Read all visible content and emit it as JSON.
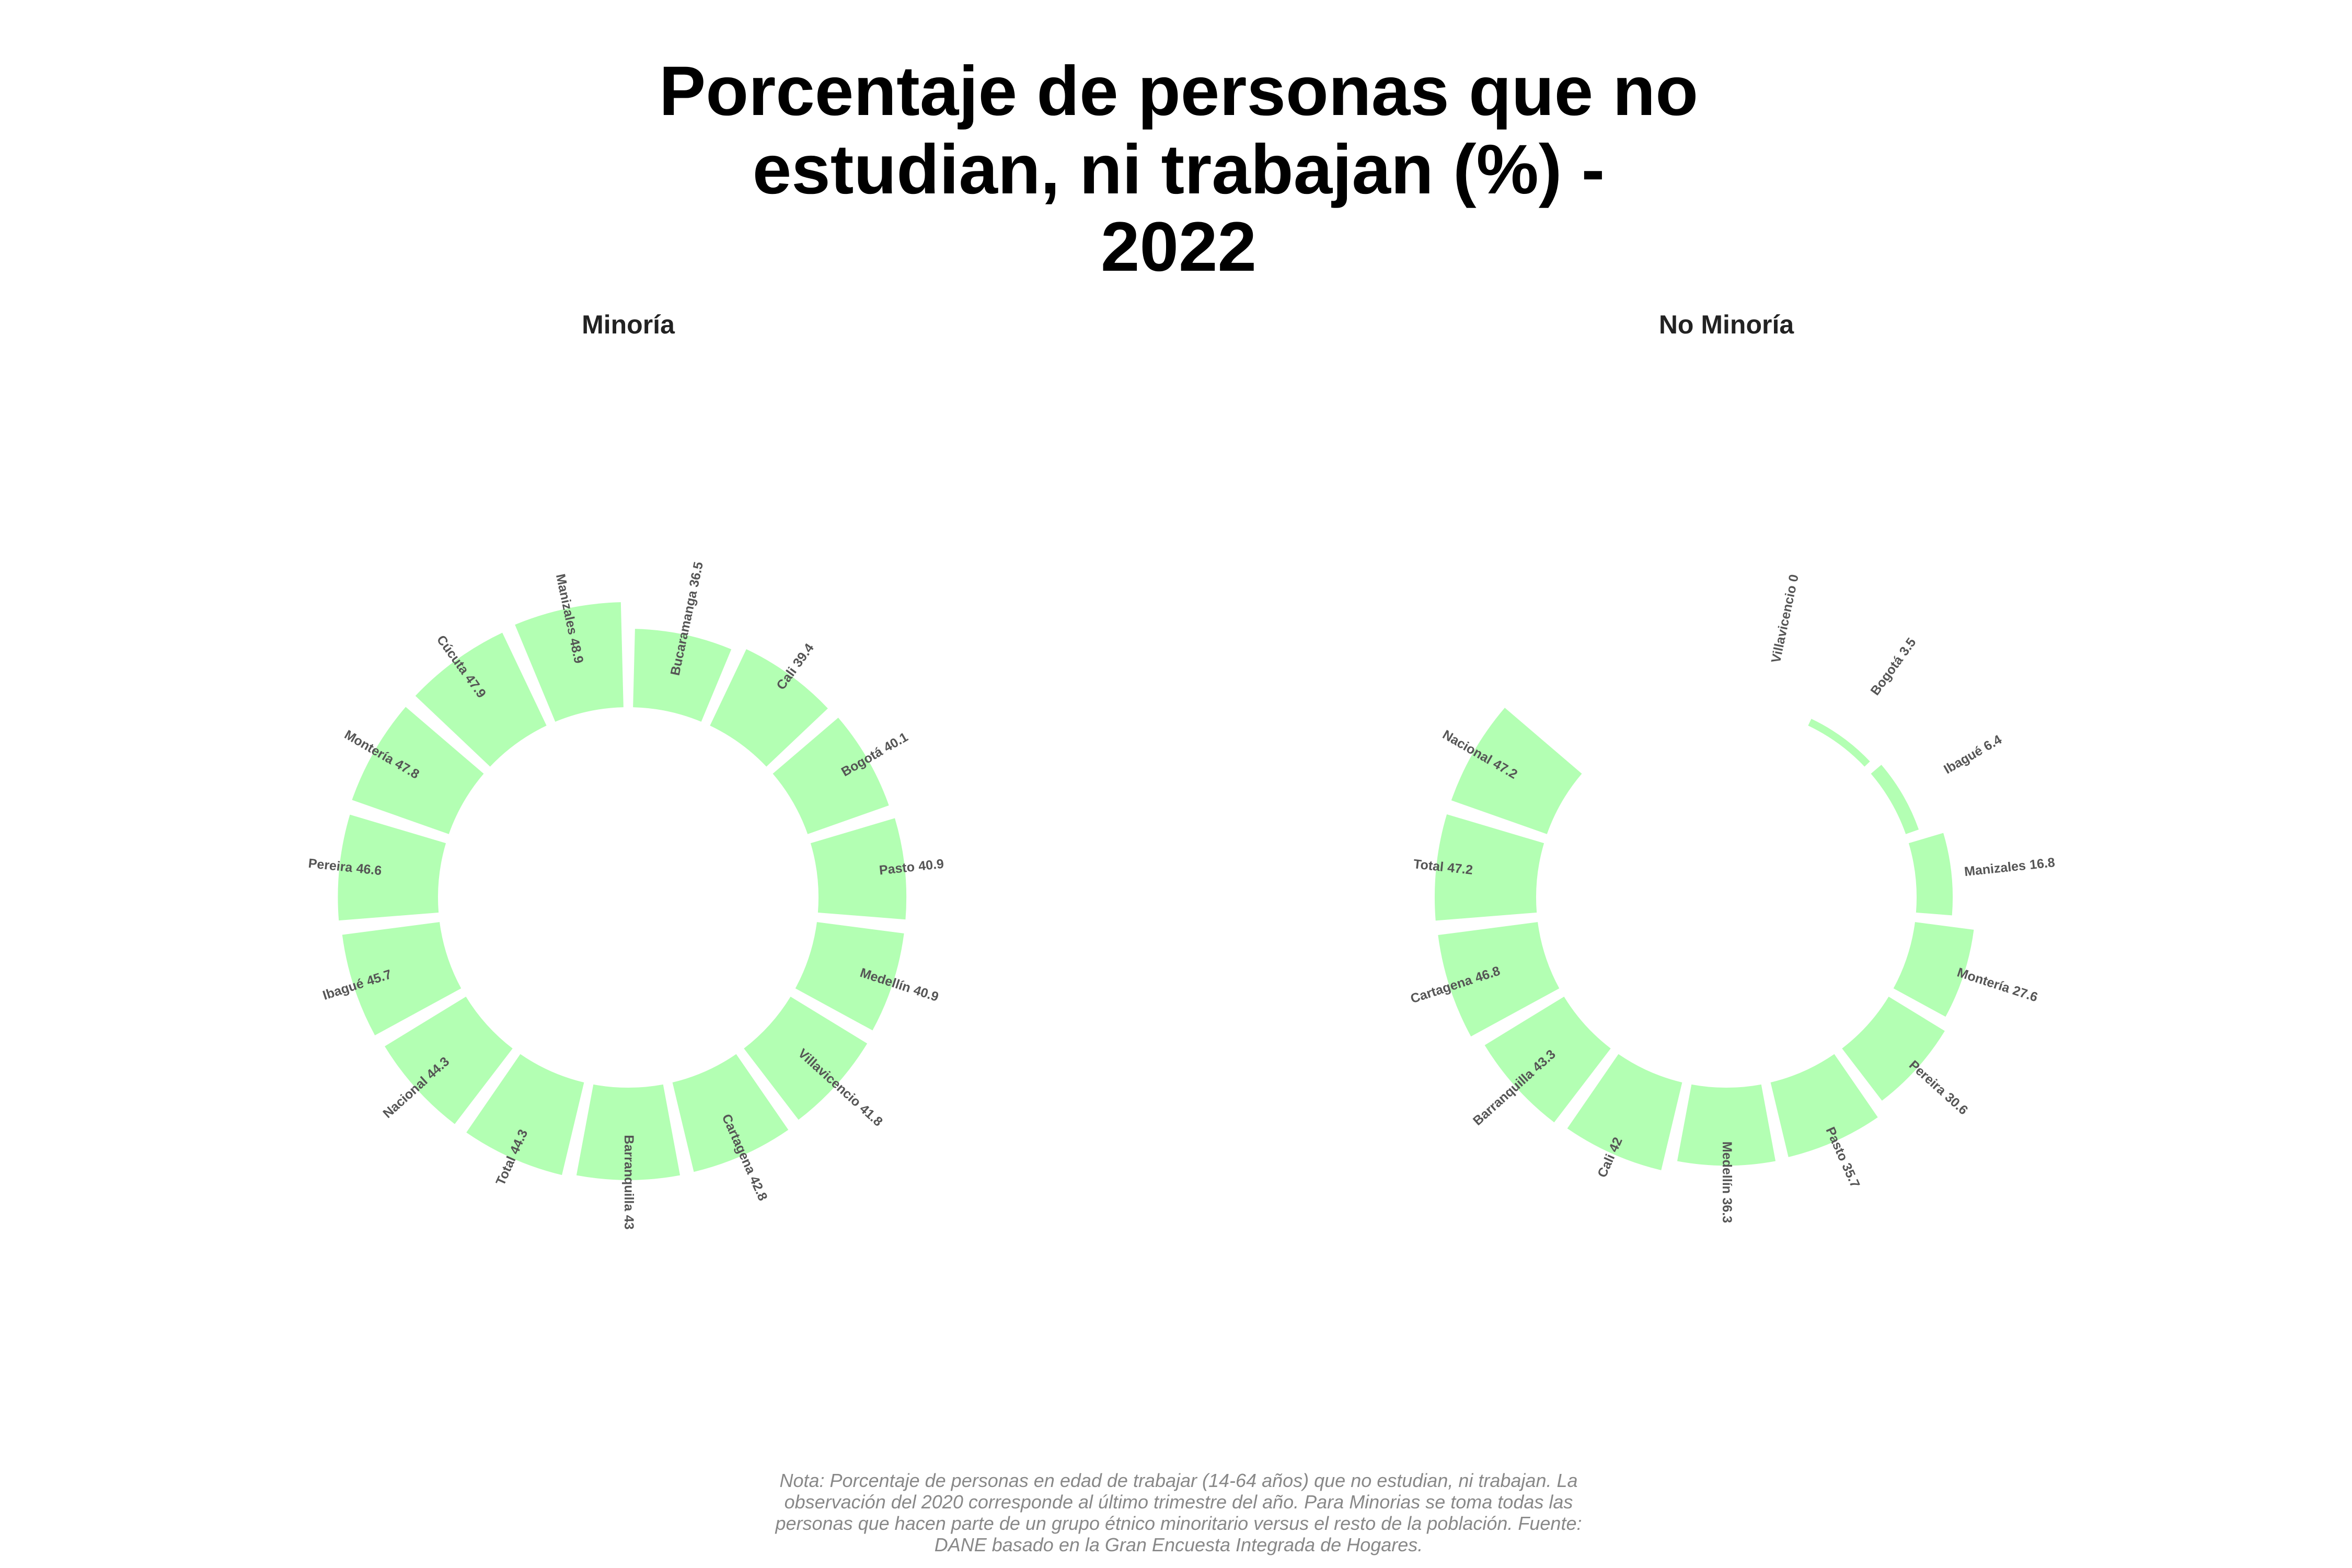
{
  "title": [
    "Porcentaje de personas que no",
    "estudian, ni trabajan (%) -",
    "2022"
  ],
  "note": [
    "Nota: Porcentaje de personas en edad de trabajar (14-64 años) que no estudian, ni trabajan. La",
    "observación del 2020 corresponde al último trimestre del año. Para Minorias se toma todas las",
    "personas que hacen parte de un grupo étnico minoritario versus el resto de la población. Fuente:",
    "DANE basado en la Gran Encuesta Integrada de Hogares."
  ],
  "chart_data": [
    {
      "type": "radial_bar",
      "title": "Minoría",
      "color": "#b3ffb3",
      "categories": [
        "Bucaramanga",
        "Cali",
        "Bogotá",
        "Pasto",
        "Medellín",
        "Villavicencio",
        "Cartagena",
        "Barranquilla",
        "Total",
        "Nacional",
        "Ibagué",
        "Pereira",
        "Montería",
        "Cúcuta",
        "Manizales"
      ],
      "values": [
        36.5,
        39.4,
        40.1,
        40.9,
        40.9,
        41.8,
        42.8,
        43,
        44.3,
        44.3,
        45.7,
        46.6,
        47.8,
        47.9,
        48.9
      ]
    },
    {
      "type": "radial_bar",
      "title": "No Minoría",
      "color": "#b3ffb3",
      "categories": [
        "Villavicencio",
        "Bogotá",
        "Ibagué",
        "Manizales",
        "Montería",
        "Pereira",
        "Pasto",
        "Medellín",
        "Cali",
        "Barranquilla",
        "Cartagena",
        "Total",
        "Nacional"
      ],
      "values": [
        0,
        3.5,
        6.4,
        16.8,
        27.6,
        30.6,
        35.7,
        36.3,
        42,
        43.3,
        46.8,
        47.2,
        47.2
      ]
    }
  ]
}
